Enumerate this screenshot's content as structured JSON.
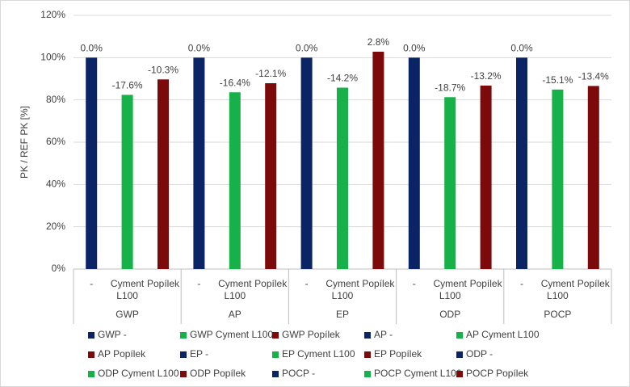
{
  "chart_data": {
    "type": "bar",
    "y_label": "PK / REF PK [%]",
    "groups": [
      "GWP",
      "AP",
      "EP",
      "ODP",
      "POCP"
    ],
    "categories": [
      "-",
      "Cyment L100",
      "Popílek",
      "-",
      "Cyment L100",
      "Popílek",
      "-",
      "Cyment L100",
      "Popílek",
      "-",
      "Cyment L100",
      "Popílek",
      "-",
      "Cyment L100",
      "Popílek"
    ],
    "ylim": [
      0,
      120
    ],
    "yticks": [
      {
        "value": 0,
        "label": "0%"
      },
      {
        "value": 20,
        "label": "20%"
      },
      {
        "value": 40,
        "label": "40%"
      },
      {
        "value": 60,
        "label": "60%"
      },
      {
        "value": 80,
        "label": "80%"
      },
      {
        "value": 100,
        "label": "100%"
      },
      {
        "value": 120,
        "label": "120%"
      }
    ],
    "grid": true,
    "legend": "bottom",
    "series": [
      {
        "name": "GWP -",
        "color": "#0b2466",
        "annotation": "0.0%",
        "values": [
          100,
          null,
          null,
          null,
          null,
          null,
          null,
          null,
          null,
          null,
          null,
          null,
          null,
          null,
          null
        ]
      },
      {
        "name": "GWP Cyment L100",
        "color": "#17b14a",
        "annotation": "-17.6%",
        "values": [
          null,
          82.4,
          null,
          null,
          null,
          null,
          null,
          null,
          null,
          null,
          null,
          null,
          null,
          null,
          null
        ]
      },
      {
        "name": "GWP Popílek",
        "color": "#7d0a0a",
        "annotation": "-10.3%",
        "values": [
          null,
          null,
          89.7,
          null,
          null,
          null,
          null,
          null,
          null,
          null,
          null,
          null,
          null,
          null,
          null
        ]
      },
      {
        "name": "AP -",
        "color": "#0b2466",
        "annotation": "0.0%",
        "values": [
          null,
          null,
          null,
          100,
          null,
          null,
          null,
          null,
          null,
          null,
          null,
          null,
          null,
          null,
          null
        ]
      },
      {
        "name": "AP Cyment L100",
        "color": "#17b14a",
        "annotation": "-16.4%",
        "values": [
          null,
          null,
          null,
          null,
          83.6,
          null,
          null,
          null,
          null,
          null,
          null,
          null,
          null,
          null,
          null
        ]
      },
      {
        "name": "AP Popílek",
        "color": "#7d0a0a",
        "annotation": "-12.1%",
        "values": [
          null,
          null,
          null,
          null,
          null,
          87.9,
          null,
          null,
          null,
          null,
          null,
          null,
          null,
          null,
          null
        ]
      },
      {
        "name": "EP -",
        "color": "#0b2466",
        "annotation": "0.0%",
        "values": [
          null,
          null,
          null,
          null,
          null,
          null,
          100,
          null,
          null,
          null,
          null,
          null,
          null,
          null,
          null
        ]
      },
      {
        "name": "EP Cyment L100",
        "color": "#17b14a",
        "annotation": "-14.2%",
        "values": [
          null,
          null,
          null,
          null,
          null,
          null,
          null,
          85.8,
          null,
          null,
          null,
          null,
          null,
          null,
          null
        ]
      },
      {
        "name": "EP Popílek",
        "color": "#7d0a0a",
        "annotation": "2.8%",
        "values": [
          null,
          null,
          null,
          null,
          null,
          null,
          null,
          null,
          102.8,
          null,
          null,
          null,
          null,
          null,
          null
        ]
      },
      {
        "name": "ODP -",
        "color": "#0b2466",
        "annotation": "0.0%",
        "values": [
          null,
          null,
          null,
          null,
          null,
          null,
          null,
          null,
          null,
          100,
          null,
          null,
          null,
          null,
          null
        ]
      },
      {
        "name": "ODP Cyment L100",
        "color": "#17b14a",
        "annotation": "-18.7%",
        "values": [
          null,
          null,
          null,
          null,
          null,
          null,
          null,
          null,
          null,
          null,
          81.3,
          null,
          null,
          null,
          null
        ]
      },
      {
        "name": "ODP Popílek",
        "color": "#7d0a0a",
        "annotation": "-13.2%",
        "values": [
          null,
          null,
          null,
          null,
          null,
          null,
          null,
          null,
          null,
          null,
          null,
          86.8,
          null,
          null,
          null
        ]
      },
      {
        "name": "POCP -",
        "color": "#0b2466",
        "annotation": "0.0%",
        "values": [
          null,
          null,
          null,
          null,
          null,
          null,
          null,
          null,
          null,
          null,
          null,
          null,
          100,
          null,
          null
        ]
      },
      {
        "name": "POCP Cyment L100",
        "color": "#17b14a",
        "annotation": "-15.1%",
        "values": [
          null,
          null,
          null,
          null,
          null,
          null,
          null,
          null,
          null,
          null,
          null,
          null,
          null,
          84.9,
          null
        ]
      },
      {
        "name": "POCP Popílek",
        "color": "#7d0a0a",
        "annotation": "-13.4%",
        "values": [
          null,
          null,
          null,
          null,
          null,
          null,
          null,
          null,
          null,
          null,
          null,
          null,
          null,
          null,
          86.6
        ]
      }
    ]
  }
}
